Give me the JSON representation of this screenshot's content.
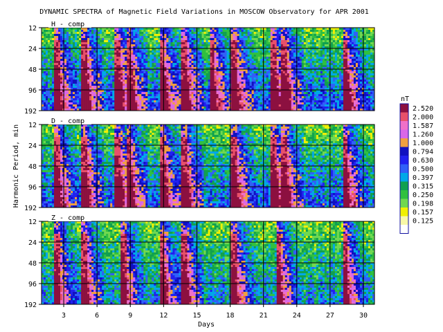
{
  "chart_data": {
    "type": "heatmap",
    "title": "DYNAMIC SPECTRA of Magnetic Field Variations in MOSCOW Observatory for APR 2001",
    "xlabel": "Days",
    "ylabel": "Harmonic Period, min",
    "x_ticks": [
      "3",
      "6",
      "9",
      "12",
      "15",
      "18",
      "21",
      "24",
      "27",
      "30"
    ],
    "x_range": [
      1,
      31
    ],
    "y_ticks": [
      "12",
      "24",
      "48",
      "96",
      "192"
    ],
    "y_scale": "log",
    "panels": [
      {
        "name": "H - comp",
        "strong_days": [
          2.5,
          5,
          8,
          9,
          12,
          14,
          16.5,
          18.5,
          22,
          23,
          28.5
        ],
        "level": 0.72
      },
      {
        "name": "D - comp",
        "strong_days": [
          2.5,
          5,
          8,
          9,
          12,
          14,
          18.5,
          22,
          23,
          28.5
        ],
        "level": 0.66
      },
      {
        "name": "Z - comp",
        "strong_days": [
          2.5,
          5,
          8.5,
          12,
          14,
          18.5,
          22.5,
          28.5
        ],
        "level": 0.45
      }
    ],
    "legend": {
      "unit": "nT",
      "levels": [
        "2.520",
        "2.000",
        "1.587",
        "1.260",
        "1.000",
        "0.794",
        "0.630",
        "0.500",
        "0.397",
        "0.315",
        "0.250",
        "0.198",
        "0.157",
        "0.125"
      ],
      "colors": [
        "#8c1040",
        "#e8506a",
        "#f070c8",
        "#d868e8",
        "#f0a040",
        "#1010c0",
        "#2020f0",
        "#3060f8",
        "#00a8e8",
        "#10a050",
        "#30c040",
        "#70d850",
        "#f0f000",
        "#f8f8a8"
      ]
    }
  }
}
